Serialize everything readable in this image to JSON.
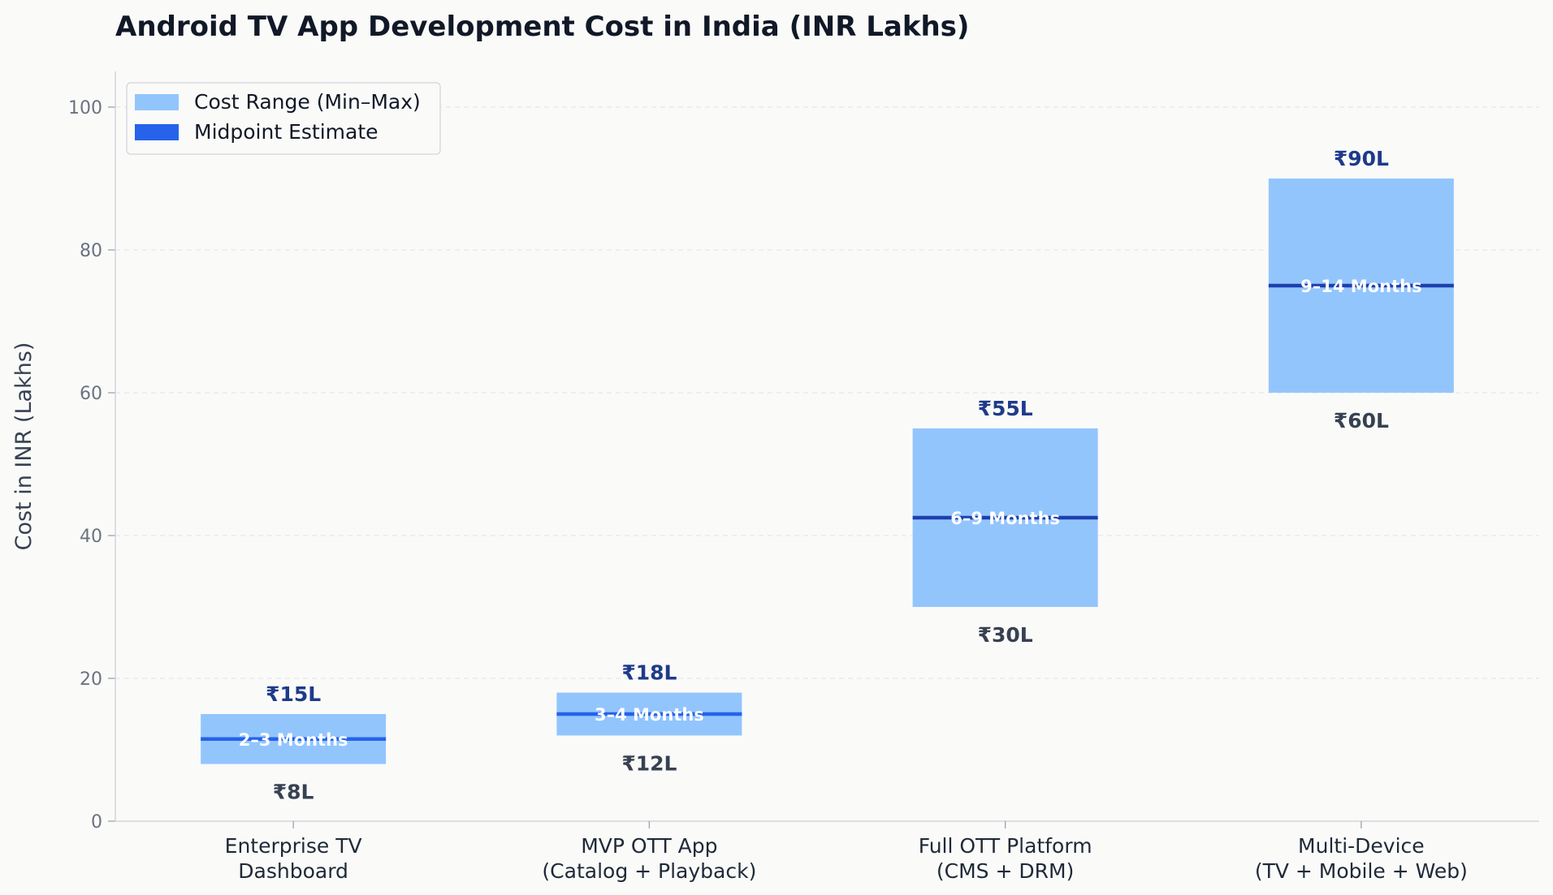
{
  "chart_data": {
    "type": "bar",
    "title": "Android TV App Development Cost in India (INR Lakhs)",
    "ylabel": "Cost in INR (Lakhs)",
    "xlabel": "",
    "ylim": [
      0,
      105
    ],
    "yticks": [
      0,
      20,
      40,
      60,
      80,
      100
    ],
    "grid": "y-dashed",
    "legend_position": "top-left",
    "legend": [
      {
        "label": "Cost Range (Min–Max)",
        "color": "#93c5fd"
      },
      {
        "label": "Midpoint Estimate",
        "color": "#2563eb"
      }
    ],
    "categories": [
      [
        "Enterprise TV",
        "Dashboard"
      ],
      [
        "MVP OTT App",
        "(Catalog + Playback)"
      ],
      [
        "Full OTT Platform",
        "(CMS + DRM)"
      ],
      [
        "Multi-Device",
        "(TV + Mobile + Web)"
      ]
    ],
    "min": [
      8,
      12,
      30,
      60
    ],
    "max": [
      15,
      18,
      55,
      90
    ],
    "midpoint": [
      11.5,
      15,
      42.5,
      75
    ],
    "min_labels": [
      "₹8L",
      "₹12L",
      "₹30L",
      "₹60L"
    ],
    "max_labels": [
      "₹15L",
      "₹18L",
      "₹55L",
      "₹90L"
    ],
    "durations": [
      "2–3 Months",
      "3–4 Months",
      "6–9 Months",
      "9–14 Months"
    ],
    "colors": {
      "range": "#93c5fd",
      "midpoint_light": "#2563eb",
      "midpoint_dark": "#1e40af",
      "axis": "#d1d5db",
      "grid": "#e5e7eb"
    }
  }
}
